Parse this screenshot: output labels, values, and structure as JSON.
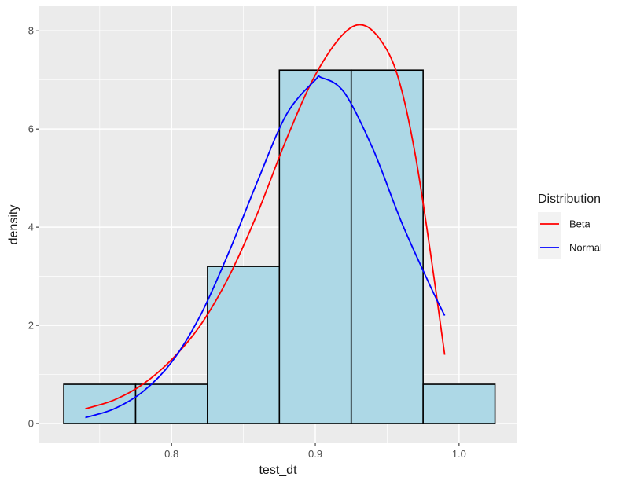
{
  "chart_data": {
    "type": "bar",
    "xlabel": "test_dt",
    "ylabel": "density",
    "xlim": [
      0.708,
      1.04
    ],
    "ylim": [
      -0.4,
      8.5
    ],
    "x_ticks": [
      "0.8",
      "0.9",
      "1.0"
    ],
    "y_ticks": [
      "0",
      "2",
      "4",
      "6",
      "8"
    ],
    "grid": true,
    "legend_position": "right",
    "histogram": {
      "bins": [
        {
          "x0": 0.725,
          "x1": 0.775,
          "density": 0.8
        },
        {
          "x0": 0.775,
          "x1": 0.825,
          "density": 0.8
        },
        {
          "x0": 0.825,
          "x1": 0.875,
          "density": 3.2
        },
        {
          "x0": 0.875,
          "x1": 0.925,
          "density": 7.2
        },
        {
          "x0": 0.925,
          "x1": 0.975,
          "density": 7.2
        },
        {
          "x0": 0.975,
          "x1": 1.025,
          "density": 0.8
        }
      ],
      "fill": "#ADD8E6",
      "stroke": "#000000"
    },
    "legend": {
      "title": "Distribution",
      "entries": [
        {
          "label": "Beta",
          "color": "#FF0000"
        },
        {
          "label": "Normal",
          "color": "#0000FF"
        }
      ]
    },
    "series": [
      {
        "name": "Beta",
        "color": "#FF0000",
        "x": [
          0.74,
          0.76,
          0.78,
          0.8,
          0.82,
          0.84,
          0.86,
          0.88,
          0.9,
          0.92,
          0.935,
          0.95,
          0.96,
          0.97,
          0.98,
          0.99
        ],
        "y": [
          0.3,
          0.48,
          0.8,
          1.3,
          2.0,
          3.0,
          4.3,
          5.8,
          7.1,
          7.95,
          8.1,
          7.6,
          6.8,
          5.4,
          3.5,
          1.4
        ]
      },
      {
        "name": "Normal",
        "color": "#0000FF",
        "x": [
          0.74,
          0.76,
          0.78,
          0.8,
          0.82,
          0.84,
          0.86,
          0.88,
          0.9,
          0.904,
          0.92,
          0.94,
          0.96,
          0.98,
          0.99
        ],
        "y": [
          0.12,
          0.3,
          0.65,
          1.25,
          2.2,
          3.5,
          4.95,
          6.3,
          7.0,
          7.05,
          6.75,
          5.6,
          4.1,
          2.8,
          2.2
        ]
      }
    ]
  }
}
